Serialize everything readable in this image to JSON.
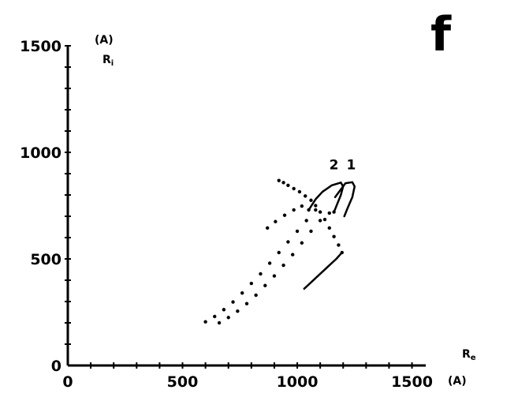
{
  "panel_label": "f",
  "chart_data": {
    "type": "scatter",
    "title": "",
    "xlabel": {
      "unit": "(A)",
      "main": "R",
      "sub": "e"
    },
    "ylabel": {
      "unit": "(A)",
      "main": "R",
      "sub": "i"
    },
    "xlim": [
      0,
      1560
    ],
    "ylim": [
      0,
      1500
    ],
    "x_ticks": [
      {
        "value": 0,
        "label": "0"
      },
      {
        "value": 500,
        "label": "500"
      },
      {
        "value": 1000,
        "label": "1000"
      },
      {
        "value": 1500,
        "label": "1500"
      }
    ],
    "y_ticks": [
      {
        "value": 0,
        "label": "0"
      },
      {
        "value": 500,
        "label": "500"
      },
      {
        "value": 1000,
        "label": "1000"
      },
      {
        "value": 1500,
        "label": "1500"
      }
    ],
    "minor_tick_step": 100,
    "grid": false,
    "legend": "none",
    "series": [
      {
        "name": "1",
        "style": "mixed",
        "solid_segments": [
          [
            [
              1030,
              360
            ],
            [
              1050,
              380
            ],
            [
              1080,
              410
            ],
            [
              1110,
              440
            ],
            [
              1140,
              470
            ],
            [
              1170,
              500
            ],
            [
              1195,
              530
            ]
          ],
          [
            [
              1165,
              790
            ],
            [
              1210,
              855
            ],
            [
              1240,
              860
            ],
            [
              1250,
              840
            ],
            [
              1240,
              790
            ],
            [
              1220,
              740
            ],
            [
              1205,
              700
            ]
          ]
        ],
        "dotted": [
          [
            1195,
            530
          ],
          [
            1180,
            565
          ],
          [
            1160,
            605
          ],
          [
            1140,
            645
          ],
          [
            1120,
            685
          ],
          [
            1100,
            720
          ],
          [
            1080,
            750
          ],
          [
            1060,
            775
          ],
          [
            1035,
            795
          ],
          [
            1010,
            815
          ],
          [
            985,
            830
          ],
          [
            960,
            845
          ],
          [
            940,
            858
          ],
          [
            920,
            868
          ]
        ]
      },
      {
        "name": "2",
        "style": "mixed",
        "solid_segments": [
          [
            [
              1050,
              730
            ],
            [
              1080,
              780
            ],
            [
              1110,
              815
            ],
            [
              1150,
              845
            ],
            [
              1190,
              858
            ]
          ],
          [
            [
              1190,
              858
            ],
            [
              1200,
              840
            ],
            [
              1190,
              800
            ],
            [
              1175,
              760
            ],
            [
              1160,
              720
            ]
          ]
        ],
        "dotted": [
          [
            660,
            200
          ],
          [
            700,
            225
          ],
          [
            740,
            255
          ],
          [
            780,
            290
          ],
          [
            820,
            330
          ],
          [
            860,
            375
          ],
          [
            900,
            420
          ],
          [
            940,
            470
          ],
          [
            980,
            520
          ],
          [
            1020,
            575
          ],
          [
            1060,
            630
          ],
          [
            1100,
            680
          ],
          [
            1140,
            715
          ],
          [
            1160,
            720
          ],
          [
            600,
            205
          ],
          [
            640,
            230
          ],
          [
            680,
            262
          ],
          [
            720,
            298
          ],
          [
            760,
            340
          ],
          [
            800,
            385
          ],
          [
            840,
            430
          ],
          [
            880,
            480
          ],
          [
            920,
            530
          ],
          [
            960,
            580
          ],
          [
            1000,
            630
          ],
          [
            1040,
            680
          ],
          [
            1080,
            730
          ],
          [
            870,
            645
          ],
          [
            905,
            675
          ],
          [
            945,
            705
          ],
          [
            985,
            730
          ],
          [
            1020,
            748
          ],
          [
            1050,
            730
          ]
        ]
      }
    ],
    "curve_labels": [
      {
        "text": "2",
        "x": 1160,
        "y": 920
      },
      {
        "text": "1",
        "x": 1235,
        "y": 920
      }
    ],
    "colors": {
      "ink": "#000000",
      "background": "#ffffff"
    }
  }
}
